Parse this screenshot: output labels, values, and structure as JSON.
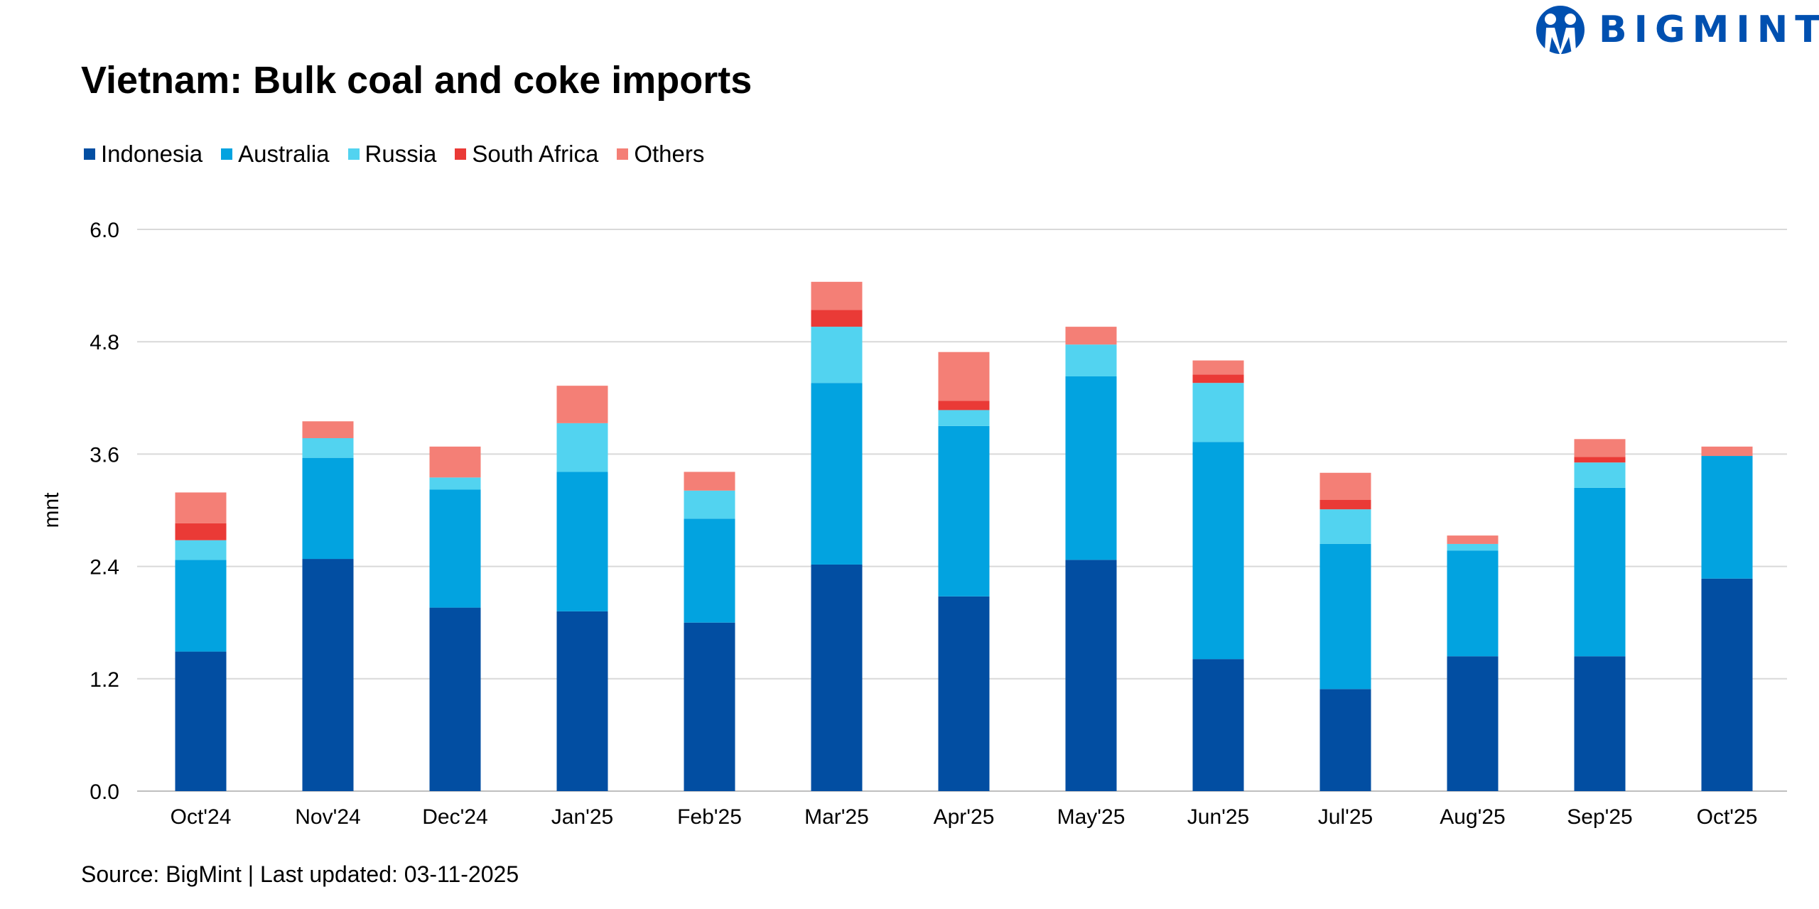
{
  "logo": {
    "text": "BIGMINT",
    "color": "#0050b0"
  },
  "source": "Source: BigMint | Last updated: 03-11-2025",
  "chart_data": {
    "type": "bar",
    "stacked": true,
    "title": "Vietnam: Bulk coal and coke imports",
    "xlabel": "",
    "ylabel": "mnt",
    "ylim": [
      0,
      6.0
    ],
    "yticks": [
      "0.0",
      "1.2",
      "2.4",
      "3.6",
      "4.8",
      "6.0"
    ],
    "grid": true,
    "legend_position": "top-left",
    "categories": [
      "Oct'24",
      "Nov'24",
      "Dec'24",
      "Jan'25",
      "Feb'25",
      "Mar'25",
      "Apr'25",
      "May'25",
      "Jun'25",
      "Jul'25",
      "Aug'25",
      "Sep'25",
      "Oct'25"
    ],
    "series": [
      {
        "name": "Indonesia",
        "color": "#024ea2",
        "values": [
          1.49,
          2.48,
          1.96,
          1.92,
          1.8,
          2.42,
          2.08,
          2.47,
          1.41,
          1.09,
          1.44,
          1.44,
          2.27
        ]
      },
      {
        "name": "Australia",
        "color": "#02a3e0",
        "values": [
          0.98,
          1.08,
          1.26,
          1.49,
          1.11,
          1.94,
          1.82,
          1.96,
          2.32,
          1.55,
          1.13,
          1.8,
          1.31
        ]
      },
      {
        "name": "Russia",
        "color": "#52d3f0",
        "values": [
          0.21,
          0.21,
          0.13,
          0.52,
          0.3,
          0.6,
          0.17,
          0.34,
          0.63,
          0.37,
          0.07,
          0.27,
          0.0
        ]
      },
      {
        "name": "South Africa",
        "color": "#ea3a36",
        "values": [
          0.18,
          0.0,
          0.0,
          0.0,
          0.0,
          0.18,
          0.1,
          0.0,
          0.09,
          0.1,
          0.0,
          0.06,
          0.0
        ]
      },
      {
        "name": "Others",
        "color": "#f47f76",
        "values": [
          0.33,
          0.18,
          0.33,
          0.4,
          0.2,
          0.3,
          0.52,
          0.19,
          0.15,
          0.29,
          0.09,
          0.19,
          0.1
        ]
      }
    ]
  }
}
